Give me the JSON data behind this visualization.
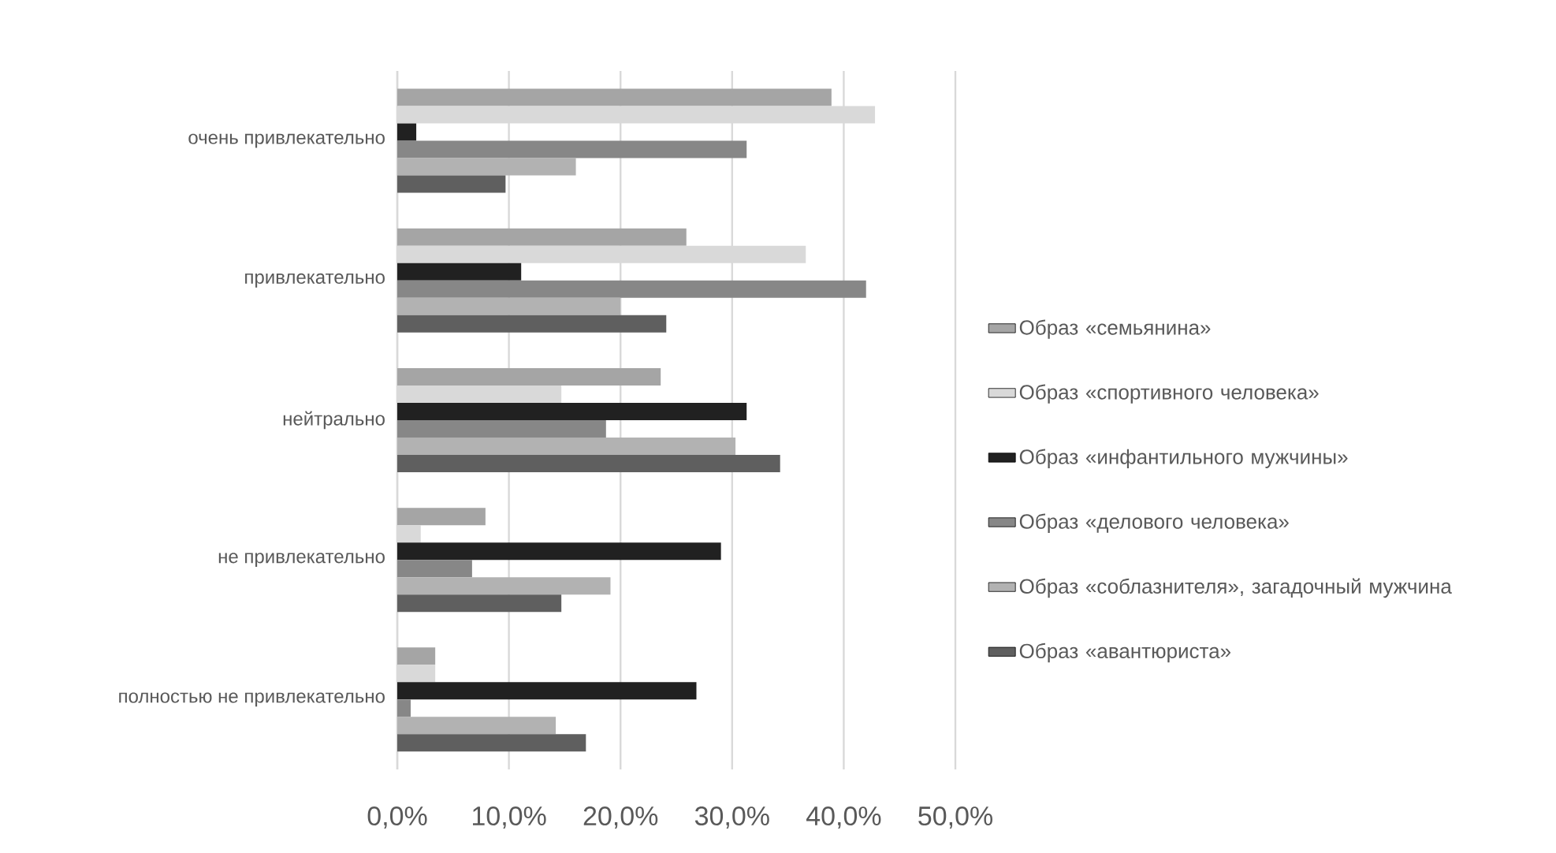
{
  "chart_data": {
    "type": "bar",
    "orientation": "horizontal",
    "categories": [
      "очень привлекательно",
      "привлекательно",
      "нейтрально",
      "не привлекательно",
      "полностью не привлекательно"
    ],
    "series": [
      {
        "name": "Образ «семьянина»",
        "color": "#a5a5a5",
        "values": [
          38.9,
          25.9,
          23.6,
          7.9,
          3.4
        ]
      },
      {
        "name": "Образ «спортивного человека»",
        "color": "#d9d9d9",
        "values": [
          42.8,
          36.6,
          14.7,
          2.1,
          3.4
        ]
      },
      {
        "name": "Образ «инфантильного мужчины»",
        "color": "#212121",
        "values": [
          1.7,
          11.1,
          31.3,
          29.0,
          26.8
        ]
      },
      {
        "name": "Образ «делового человека»",
        "color": "#878787",
        "values": [
          31.3,
          42.0,
          18.7,
          6.7,
          1.2
        ]
      },
      {
        "name": "Образ «соблазнителя», загадочный мужчина",
        "color": "#b2b2b2",
        "values": [
          16.0,
          20.0,
          30.3,
          19.1,
          14.2
        ]
      },
      {
        "name": "Образ «авантюриста»",
        "color": "#5f5f5f",
        "values": [
          9.7,
          24.1,
          34.3,
          14.7,
          16.9
        ]
      }
    ],
    "xlim": [
      0,
      50
    ],
    "xticks": [
      {
        "value": 0,
        "label": "0,0%"
      },
      {
        "value": 10,
        "label": "10,0%"
      },
      {
        "value": 20,
        "label": "20,0%"
      },
      {
        "value": 30,
        "label": "30,0%"
      },
      {
        "value": 40,
        "label": "40,0%"
      },
      {
        "value": 50,
        "label": "50,0%"
      }
    ],
    "grid": "x",
    "legend": "right"
  }
}
